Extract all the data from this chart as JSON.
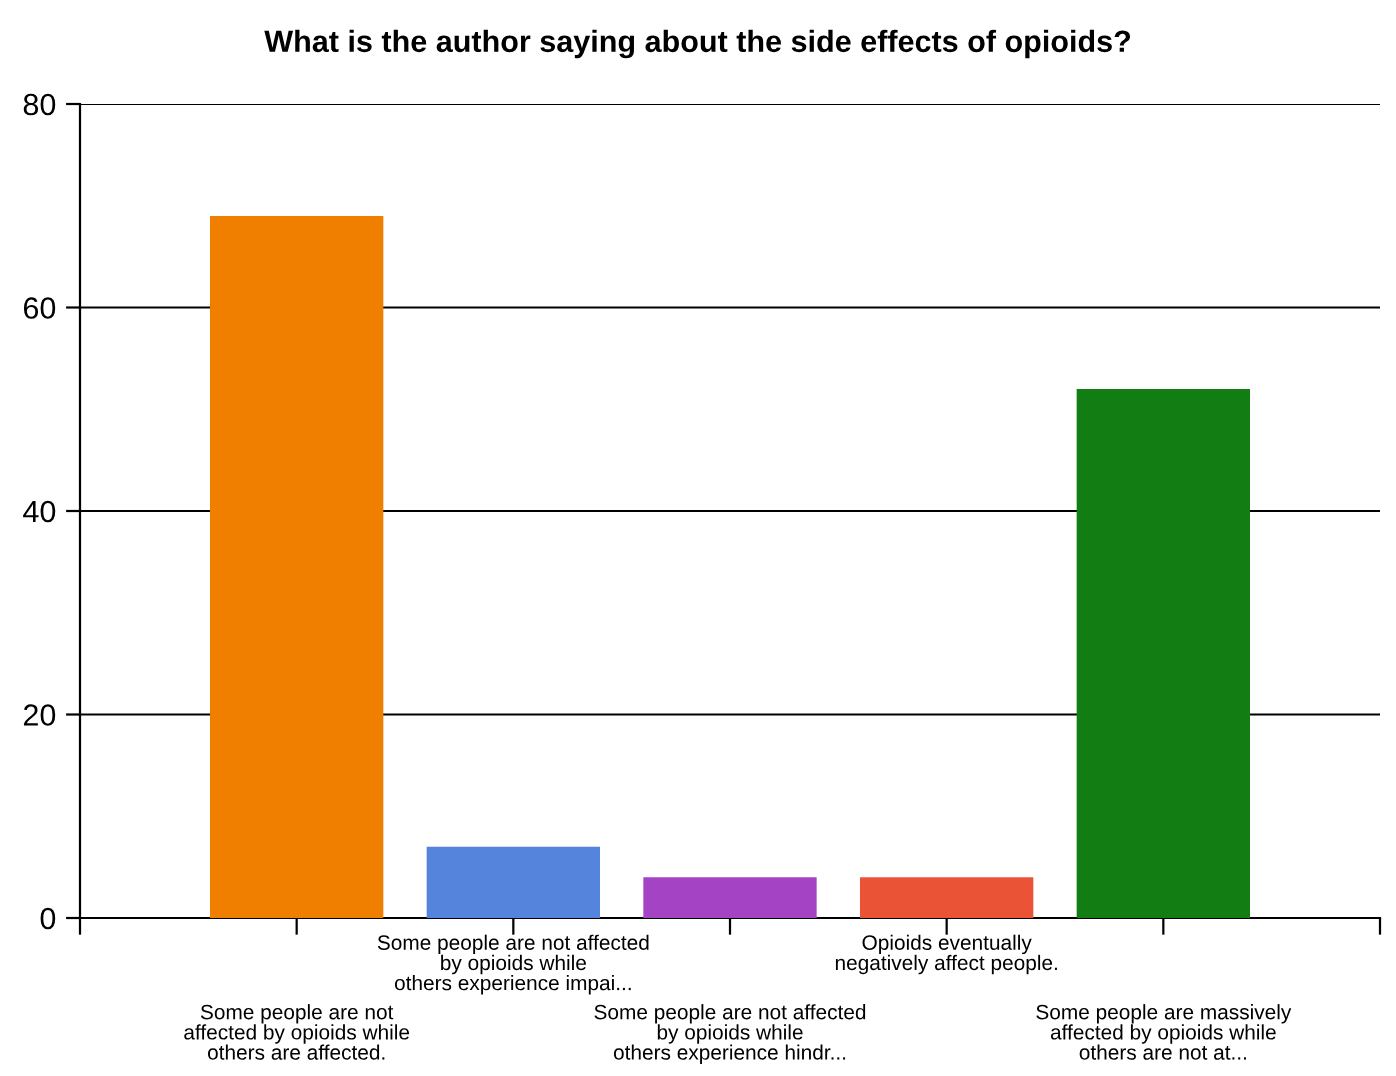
{
  "chart_data": {
    "type": "bar",
    "title": "What is the author saying about the side effects of opioids?",
    "categories": [
      "Some people are not\naffected by opioids while\nothers are affected.",
      "Some people are not affected\nby opioids while\nothers experience impai...",
      "Some people are not affected\nby opioids while\nothers experience hindr...",
      "Opioids eventually\nnegatively affect people.",
      "Some people are massively\naffected by opioids while\nothers are not at..."
    ],
    "values": [
      69,
      7,
      4,
      4,
      52
    ],
    "colors": [
      "#f07f00",
      "#5584dd",
      "#a444c4",
      "#eb5337",
      "#127d12"
    ],
    "ylim": [
      0,
      80
    ],
    "yticks": [
      0,
      20,
      40,
      60,
      80
    ],
    "grid": "y"
  }
}
